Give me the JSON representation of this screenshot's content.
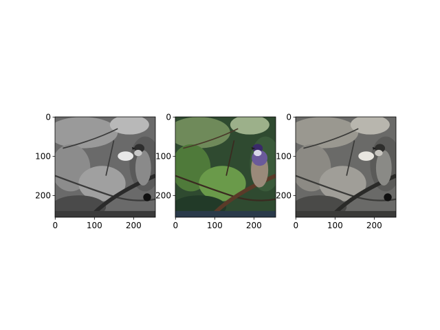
{
  "chart_data": [
    {
      "type": "image",
      "colormap": "gray",
      "xlim": [
        0,
        255
      ],
      "ylim": [
        255,
        0
      ],
      "xticks": [
        0,
        100,
        200
      ],
      "yticks": [
        0,
        100,
        200
      ],
      "xtick_labels": [
        "0",
        "100",
        "200"
      ],
      "ytick_labels": [
        "0",
        "100",
        "200"
      ]
    },
    {
      "type": "image",
      "colormap": "rgb",
      "xlim": [
        0,
        255
      ],
      "ylim": [
        255,
        0
      ],
      "xticks": [
        0,
        100,
        200
      ],
      "yticks": [
        0,
        100,
        200
      ],
      "xtick_labels": [
        "0",
        "100",
        "200"
      ],
      "ytick_labels": [
        "0",
        "100",
        "200"
      ]
    },
    {
      "type": "image",
      "colormap": "sepia-gray",
      "xlim": [
        0,
        255
      ],
      "ylim": [
        255,
        0
      ],
      "xticks": [
        0,
        100,
        200
      ],
      "yticks": [
        0,
        100,
        200
      ],
      "xtick_labels": [
        "0",
        "100",
        "200"
      ],
      "ytick_labels": [
        "0",
        "100",
        "200"
      ]
    }
  ],
  "colors": {
    "axis": "#000000",
    "background": "#ffffff"
  }
}
